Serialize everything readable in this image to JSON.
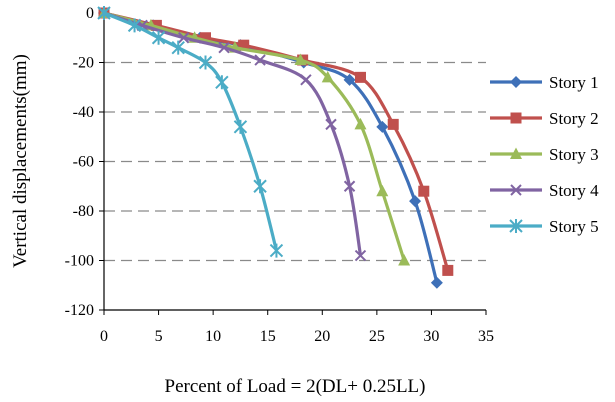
{
  "chart_data": {
    "type": "line",
    "xlabel": "Percent of Load =  2(DL+ 0.25LL)",
    "ylabel": "Vertical  displacements(mm)",
    "xlim": [
      0,
      35
    ],
    "ylim": [
      -120,
      0
    ],
    "xticks": [
      "0",
      "5",
      "10",
      "15",
      "20",
      "25",
      "30",
      "35"
    ],
    "yticks": [
      "0",
      "-20",
      "-40",
      "-60",
      "-80",
      "-100",
      "-120"
    ],
    "grid": "horizontal dashed",
    "legend_position": "right",
    "series": [
      {
        "name": "Story 1",
        "color": "#3E70B8",
        "marker": "diamond",
        "x": [
          0,
          4.5,
          8.8,
          12.5,
          18.3,
          22.5,
          25.5,
          28.5,
          30.5
        ],
        "y": [
          0,
          -5,
          -10,
          -13,
          -20,
          -27,
          -46,
          -76,
          -109
        ]
      },
      {
        "name": "Story 2",
        "color": "#C0504D",
        "marker": "square",
        "x": [
          0,
          4.8,
          9.3,
          12.8,
          18.2,
          23.5,
          26.5,
          29.3,
          31.5
        ],
        "y": [
          0,
          -5,
          -10,
          -13,
          -19,
          -26,
          -45,
          -72,
          -104
        ]
      },
      {
        "name": "Story 3",
        "color": "#9BBB59",
        "marker": "triangle",
        "x": [
          0,
          4.3,
          8.3,
          12.0,
          18.0,
          20.5,
          23.5,
          25.5,
          27.5
        ],
        "y": [
          0,
          -5,
          -10,
          -14,
          -19,
          -26,
          -45,
          -72,
          -100
        ]
      },
      {
        "name": "Story 4",
        "color": "#8064A2",
        "marker": "x",
        "x": [
          0,
          3.5,
          7.3,
          11.0,
          14.3,
          18.5,
          20.8,
          22.5,
          23.5
        ],
        "y": [
          0,
          -5,
          -10,
          -14,
          -19,
          -27,
          -45,
          -70,
          -98
        ]
      },
      {
        "name": "Story 5",
        "color": "#4BACC6",
        "marker": "star",
        "x": [
          0,
          2.8,
          5.0,
          6.8,
          9.3,
          10.8,
          12.5,
          14.3,
          15.8
        ],
        "y": [
          0,
          -5,
          -10,
          -14,
          -20,
          -28,
          -46,
          -70,
          -96
        ]
      }
    ]
  }
}
